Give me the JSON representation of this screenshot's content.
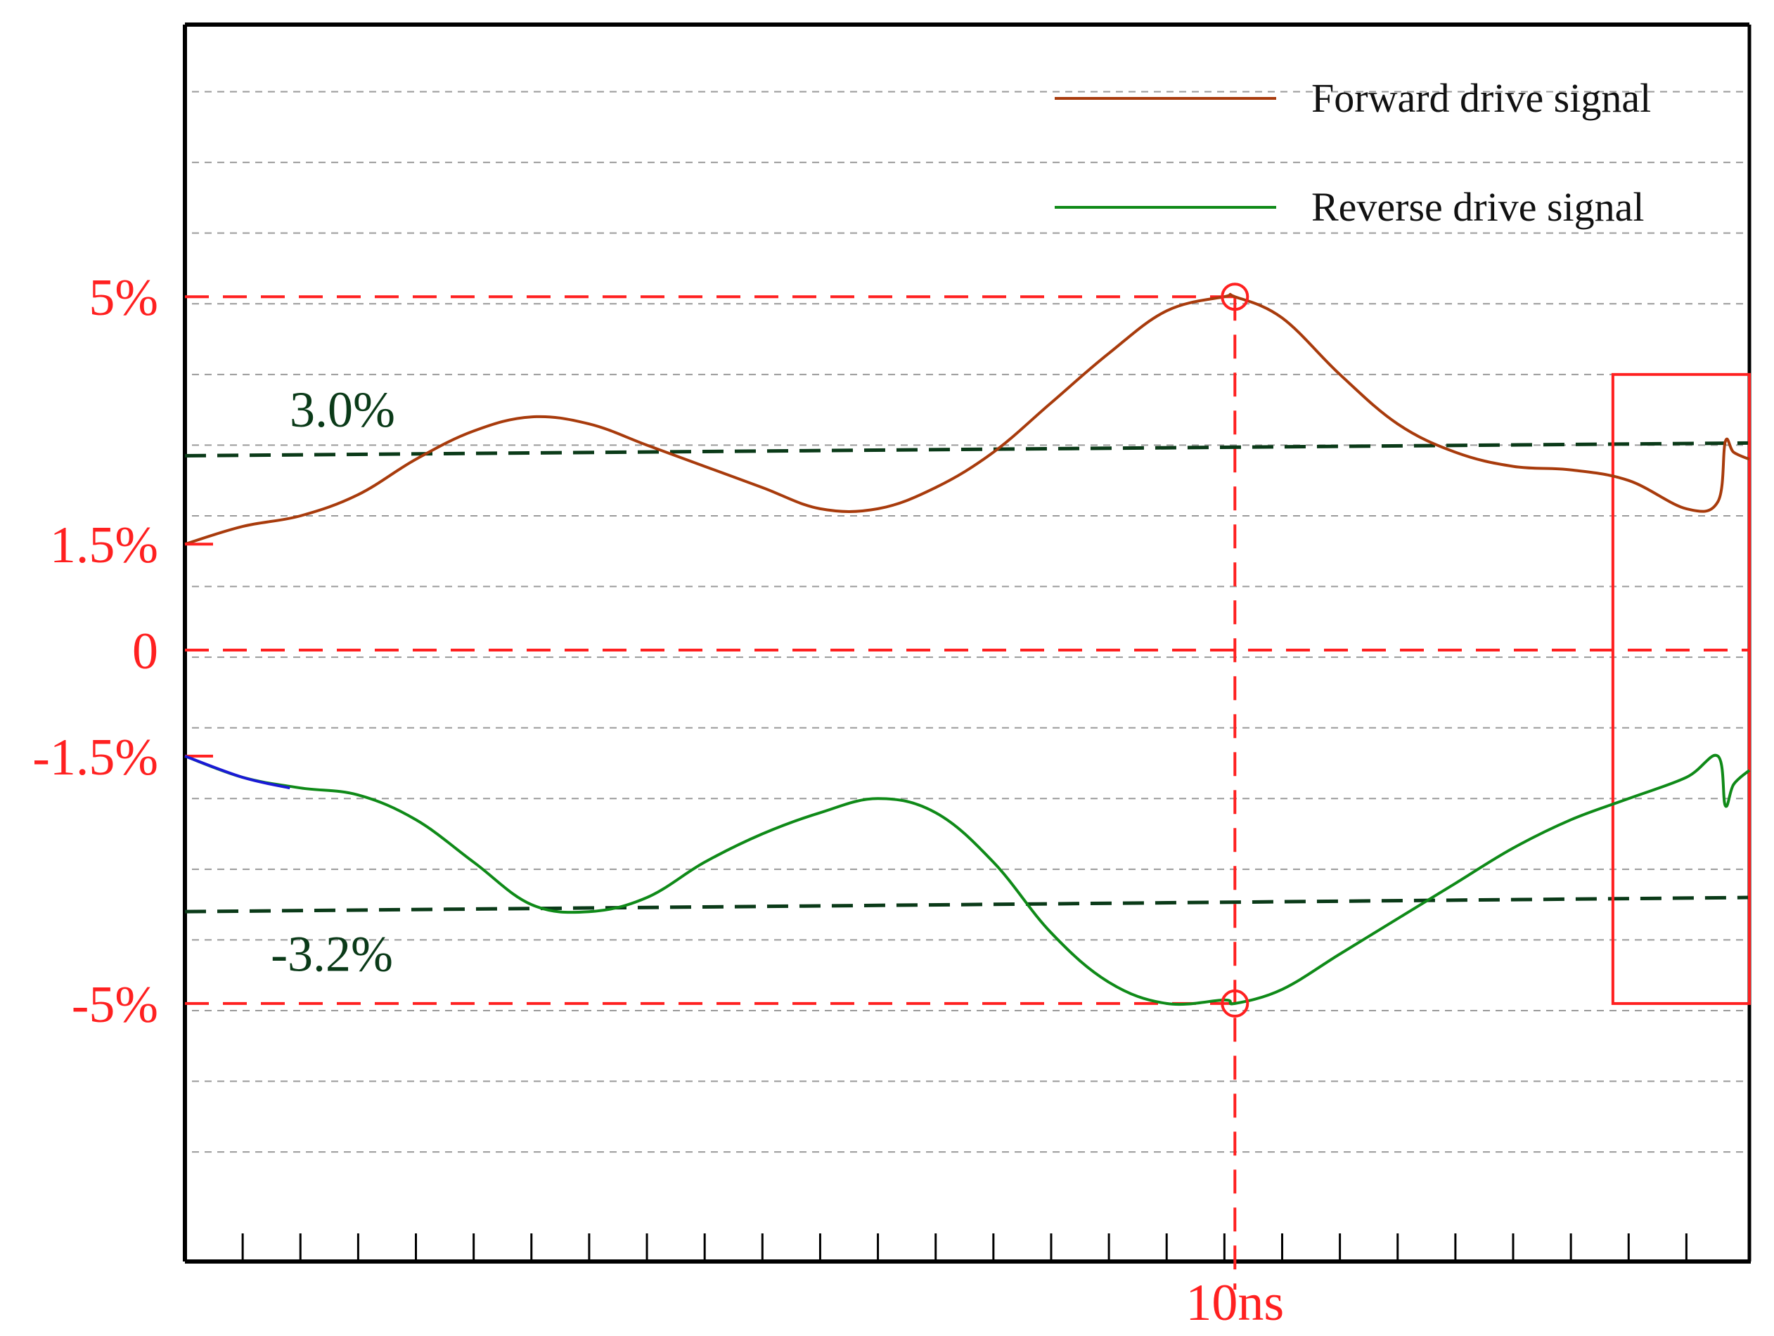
{
  "chart_data": {
    "type": "line",
    "title": "",
    "xlabel": "",
    "ylabel": "",
    "x_unit": "ns",
    "y_unit": "%",
    "xlim": [
      0,
      14.9
    ],
    "ylim": [
      -8.65,
      8.85
    ],
    "y_tick_labels": [
      {
        "value": 5,
        "label": "5%"
      },
      {
        "value": 1.5,
        "label": "1.5%"
      },
      {
        "value": 0,
        "label": "0"
      },
      {
        "value": -1.5,
        "label": "-1.5%"
      },
      {
        "value": -5,
        "label": "-5%"
      }
    ],
    "x_tick_labels": [
      {
        "value": 10,
        "label": "10ns"
      }
    ],
    "x_minor_ticks": [
      0.55,
      1.1,
      1.65,
      2.2,
      2.75,
      3.3,
      3.85,
      4.4,
      4.95,
      5.5,
      6.05,
      6.6,
      7.15,
      7.7,
      8.25,
      8.8,
      9.35,
      9.9,
      10.45,
      11.0,
      11.55,
      12.1,
      12.65,
      13.2,
      13.75,
      14.3
    ],
    "grid": {
      "horizontal_dashed": true,
      "grid_y_values": [
        7.9,
        6.9,
        5.9,
        4.9,
        3.9,
        2.9,
        1.9,
        0.9,
        -0.1,
        -1.1,
        -2.1,
        -3.1,
        -4.1,
        -5.1,
        -6.1,
        -7.1
      ]
    },
    "reference_lines": [
      {
        "y": 5,
        "x_end": 10,
        "style": "dashed",
        "color": "#ff2020"
      },
      {
        "y": 0,
        "style": "dashed",
        "color": "#ff2020"
      },
      {
        "y": -5,
        "x_end": 10,
        "style": "dashed",
        "color": "#ff2020"
      },
      {
        "x": 10,
        "style": "dashed",
        "color": "#ff2020"
      }
    ],
    "average_lines": [
      {
        "label": "3.0%",
        "x": [
          0,
          14.9
        ],
        "y": [
          2.75,
          2.93
        ],
        "color": "#0a3a18"
      },
      {
        "label": "-3.2%",
        "x": [
          0,
          14.9
        ],
        "y": [
          -3.7,
          -3.5
        ],
        "color": "#0a3a18"
      }
    ],
    "annotations": [
      {
        "text": "3.0%",
        "at": [
          1.5,
          3.4
        ],
        "color": "#0a3a18"
      },
      {
        "text": "-3.2%",
        "at": [
          1.4,
          -4.3
        ],
        "color": "#0a3a18"
      }
    ],
    "markers": [
      {
        "x": 10,
        "y": 5,
        "shape": "circle",
        "color": "#ff2020"
      },
      {
        "x": 10,
        "y": -5,
        "shape": "circle",
        "color": "#ff2020"
      }
    ],
    "highlight_box": {
      "x": [
        13.6,
        14.9
      ],
      "y": [
        -5,
        3.9
      ],
      "color": "#ff2020"
    },
    "legend": {
      "position": "top-right"
    },
    "series": [
      {
        "name": "Forward drive signal",
        "color": "#a83b0c",
        "x": [
          0,
          0.55,
          1.1,
          1.65,
          2.2,
          2.75,
          3.3,
          3.85,
          4.4,
          4.95,
          5.5,
          6.05,
          6.6,
          7.15,
          7.7,
          8.25,
          8.8,
          9.35,
          9.9,
          10.0,
          10.45,
          11.0,
          11.55,
          12.1,
          12.65,
          13.2,
          13.75,
          14.3,
          14.6,
          14.67,
          14.75,
          14.9
        ],
        "y": [
          1.5,
          1.75,
          1.9,
          2.2,
          2.7,
          3.1,
          3.3,
          3.2,
          2.9,
          2.6,
          2.3,
          2.0,
          2.0,
          2.3,
          2.8,
          3.5,
          4.2,
          4.8,
          5.0,
          5.0,
          4.7,
          3.9,
          3.2,
          2.8,
          2.6,
          2.55,
          2.4,
          2.0,
          2.1,
          2.95,
          2.8,
          2.7
        ]
      },
      {
        "name": "Reverse drive signal",
        "color": "#0f8a18",
        "x": [
          0,
          0.55,
          1.1,
          1.65,
          2.2,
          2.75,
          3.3,
          3.85,
          4.4,
          4.95,
          5.5,
          6.05,
          6.6,
          7.15,
          7.7,
          8.25,
          8.8,
          9.35,
          9.9,
          10.0,
          10.45,
          11.0,
          11.55,
          12.1,
          12.65,
          13.2,
          13.75,
          14.3,
          14.6,
          14.67,
          14.75,
          14.9
        ],
        "y": [
          -1.5,
          -1.8,
          -1.95,
          -2.05,
          -2.4,
          -3.0,
          -3.6,
          -3.7,
          -3.5,
          -3.0,
          -2.6,
          -2.3,
          -2.1,
          -2.3,
          -3.0,
          -4.0,
          -4.7,
          -5.0,
          -4.95,
          -5.0,
          -4.8,
          -4.3,
          -3.8,
          -3.3,
          -2.8,
          -2.4,
          -2.1,
          -1.8,
          -1.5,
          -2.2,
          -1.9,
          -1.7
        ]
      }
    ],
    "segment_overlays": [
      {
        "color": "#1a1ad6",
        "x": [
          0,
          0.55,
          1.0
        ],
        "y": [
          -1.5,
          -1.8,
          -1.95
        ]
      }
    ]
  }
}
